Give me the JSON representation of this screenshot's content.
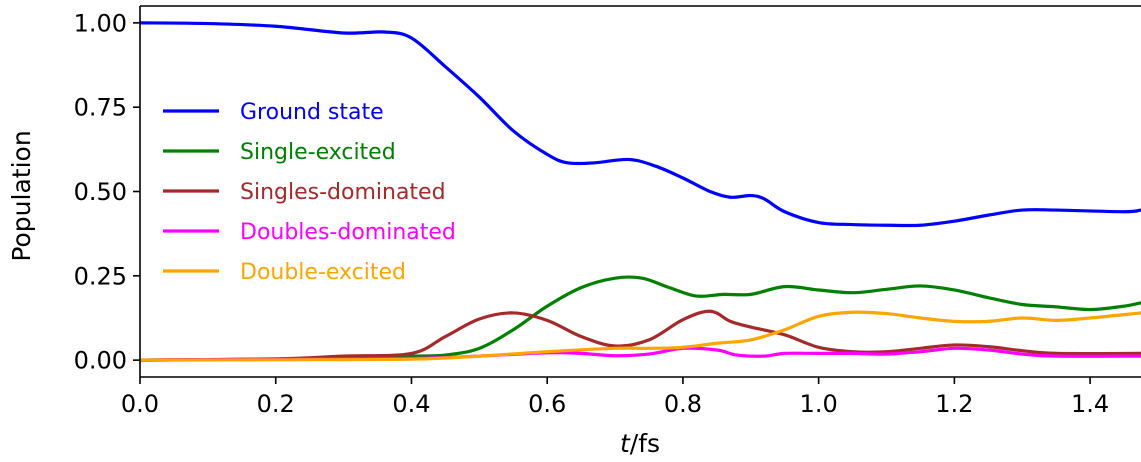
{
  "chart_data": {
    "type": "line",
    "xlabel_italic": "t",
    "xlabel_rest": "/fs",
    "ylabel": "Population",
    "xlim": [
      0.0,
      1.475
    ],
    "ylim": [
      -0.05,
      1.05
    ],
    "xticks": [
      0.0,
      0.2,
      0.4,
      0.6,
      0.8,
      1.0,
      1.2,
      1.4
    ],
    "xtick_labels": [
      "0.0",
      "0.2",
      "0.4",
      "0.6",
      "0.8",
      "1.0",
      "1.2",
      "1.4"
    ],
    "yticks": [
      0.0,
      0.25,
      0.5,
      0.75,
      1.0
    ],
    "ytick_labels": [
      "0.00",
      "0.25",
      "0.50",
      "0.75",
      "1.00"
    ],
    "grid": false,
    "legend_position": "center-left",
    "series": [
      {
        "name": "Ground state",
        "color": "#0000ff",
        "points": [
          [
            0.0,
            1.0
          ],
          [
            0.1,
            0.998
          ],
          [
            0.2,
            0.99
          ],
          [
            0.3,
            0.97
          ],
          [
            0.36,
            0.973
          ],
          [
            0.4,
            0.955
          ],
          [
            0.45,
            0.87
          ],
          [
            0.5,
            0.78
          ],
          [
            0.55,
            0.68
          ],
          [
            0.6,
            0.61
          ],
          [
            0.63,
            0.585
          ],
          [
            0.67,
            0.585
          ],
          [
            0.72,
            0.595
          ],
          [
            0.76,
            0.575
          ],
          [
            0.8,
            0.54
          ],
          [
            0.84,
            0.5
          ],
          [
            0.87,
            0.483
          ],
          [
            0.9,
            0.488
          ],
          [
            0.92,
            0.478
          ],
          [
            0.95,
            0.44
          ],
          [
            1.0,
            0.408
          ],
          [
            1.05,
            0.402
          ],
          [
            1.1,
            0.4
          ],
          [
            1.15,
            0.4
          ],
          [
            1.2,
            0.412
          ],
          [
            1.25,
            0.43
          ],
          [
            1.3,
            0.445
          ],
          [
            1.35,
            0.445
          ],
          [
            1.45,
            0.44
          ],
          [
            1.475,
            0.445
          ]
        ]
      },
      {
        "name": "Single-excited",
        "color": "#008000",
        "points": [
          [
            0.0,
            0.0
          ],
          [
            0.2,
            0.003
          ],
          [
            0.3,
            0.008
          ],
          [
            0.4,
            0.012
          ],
          [
            0.45,
            0.015
          ],
          [
            0.5,
            0.035
          ],
          [
            0.55,
            0.09
          ],
          [
            0.6,
            0.16
          ],
          [
            0.65,
            0.215
          ],
          [
            0.7,
            0.243
          ],
          [
            0.74,
            0.243
          ],
          [
            0.78,
            0.215
          ],
          [
            0.82,
            0.19
          ],
          [
            0.86,
            0.195
          ],
          [
            0.9,
            0.195
          ],
          [
            0.95,
            0.218
          ],
          [
            1.0,
            0.208
          ],
          [
            1.05,
            0.2
          ],
          [
            1.1,
            0.21
          ],
          [
            1.15,
            0.22
          ],
          [
            1.2,
            0.208
          ],
          [
            1.25,
            0.185
          ],
          [
            1.3,
            0.165
          ],
          [
            1.35,
            0.158
          ],
          [
            1.4,
            0.15
          ],
          [
            1.45,
            0.16
          ],
          [
            1.475,
            0.17
          ]
        ]
      },
      {
        "name": "Singles-dominated",
        "color": "#a52a2a",
        "points": [
          [
            0.0,
            0.0
          ],
          [
            0.2,
            0.004
          ],
          [
            0.3,
            0.012
          ],
          [
            0.4,
            0.02
          ],
          [
            0.45,
            0.07
          ],
          [
            0.5,
            0.122
          ],
          [
            0.55,
            0.14
          ],
          [
            0.6,
            0.118
          ],
          [
            0.65,
            0.07
          ],
          [
            0.7,
            0.042
          ],
          [
            0.75,
            0.06
          ],
          [
            0.8,
            0.12
          ],
          [
            0.84,
            0.145
          ],
          [
            0.87,
            0.115
          ],
          [
            0.9,
            0.098
          ],
          [
            0.95,
            0.075
          ],
          [
            1.0,
            0.038
          ],
          [
            1.05,
            0.025
          ],
          [
            1.1,
            0.025
          ],
          [
            1.15,
            0.035
          ],
          [
            1.2,
            0.045
          ],
          [
            1.25,
            0.04
          ],
          [
            1.3,
            0.028
          ],
          [
            1.35,
            0.02
          ],
          [
            1.475,
            0.02
          ]
        ]
      },
      {
        "name": "Doubles-dominated",
        "color": "#ff00ff",
        "points": [
          [
            0.0,
            0.0
          ],
          [
            0.2,
            0.003
          ],
          [
            0.4,
            0.005
          ],
          [
            0.5,
            0.012
          ],
          [
            0.6,
            0.022
          ],
          [
            0.65,
            0.02
          ],
          [
            0.7,
            0.013
          ],
          [
            0.75,
            0.018
          ],
          [
            0.8,
            0.035
          ],
          [
            0.85,
            0.03
          ],
          [
            0.88,
            0.015
          ],
          [
            0.92,
            0.012
          ],
          [
            0.95,
            0.02
          ],
          [
            1.0,
            0.02
          ],
          [
            1.05,
            0.02
          ],
          [
            1.1,
            0.018
          ],
          [
            1.15,
            0.025
          ],
          [
            1.2,
            0.035
          ],
          [
            1.25,
            0.03
          ],
          [
            1.3,
            0.018
          ],
          [
            1.35,
            0.012
          ],
          [
            1.475,
            0.012
          ]
        ]
      },
      {
        "name": "Double-excited",
        "color": "#ffa500",
        "points": [
          [
            0.0,
            0.0
          ],
          [
            0.2,
            0.001
          ],
          [
            0.4,
            0.003
          ],
          [
            0.5,
            0.012
          ],
          [
            0.6,
            0.025
          ],
          [
            0.7,
            0.035
          ],
          [
            0.75,
            0.035
          ],
          [
            0.8,
            0.038
          ],
          [
            0.85,
            0.05
          ],
          [
            0.9,
            0.06
          ],
          [
            0.95,
            0.09
          ],
          [
            1.0,
            0.13
          ],
          [
            1.05,
            0.142
          ],
          [
            1.1,
            0.138
          ],
          [
            1.15,
            0.125
          ],
          [
            1.2,
            0.115
          ],
          [
            1.25,
            0.115
          ],
          [
            1.3,
            0.125
          ],
          [
            1.35,
            0.118
          ],
          [
            1.4,
            0.125
          ],
          [
            1.45,
            0.135
          ],
          [
            1.475,
            0.14
          ]
        ]
      }
    ]
  }
}
